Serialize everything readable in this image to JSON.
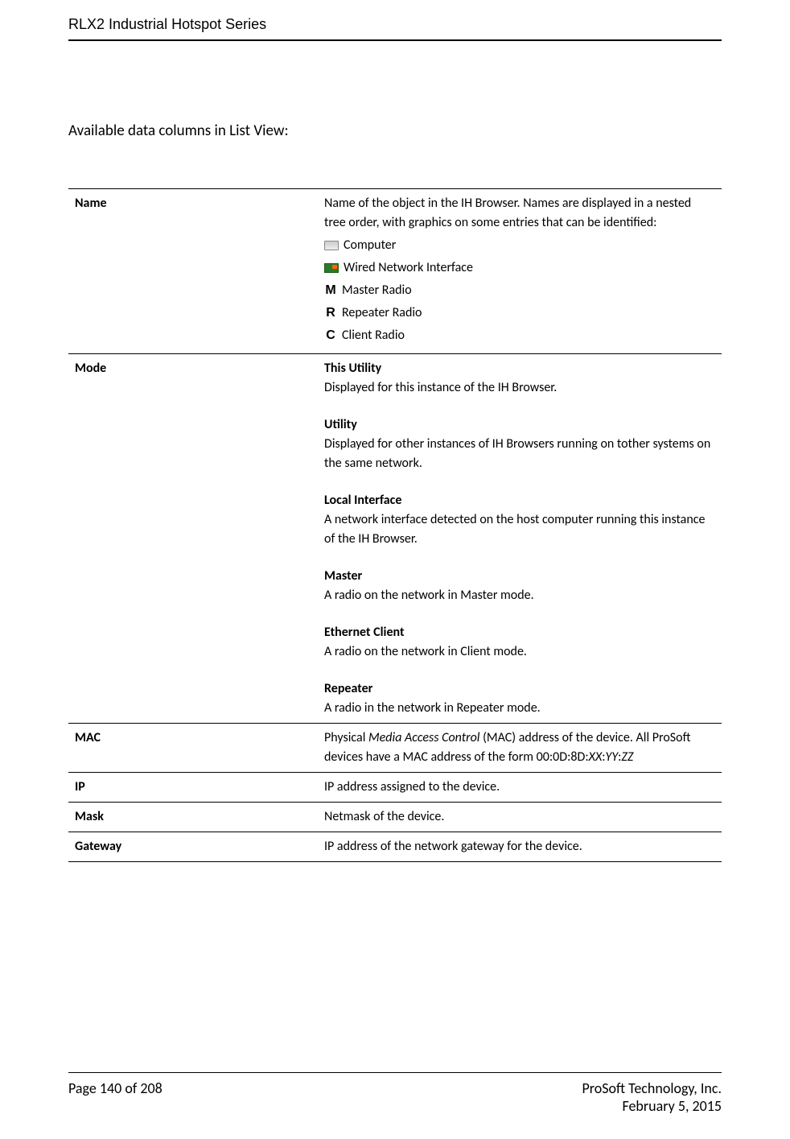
{
  "header": {
    "title": "RLX2 Industrial Hotspot Series"
  },
  "section": {
    "title": "Available data columns in List View:"
  },
  "table": {
    "name": {
      "label": "Name",
      "description": "Name of the object in the IH Browser. Names are displayed in a nested tree order, with graphics on some entries that can be identified:",
      "icons": {
        "computer": "Computer",
        "wired": "Wired Network Interface",
        "master_letter": "M",
        "master": "Master Radio",
        "repeater_letter": "R",
        "repeater": "Repeater Radio",
        "client_letter": "C",
        "client": "Client Radio"
      }
    },
    "mode": {
      "label": "Mode",
      "this_utility": {
        "heading": "This Utility",
        "desc": "Displayed for this instance of the IH Browser."
      },
      "utility": {
        "heading": "Utility",
        "desc": "Displayed for other instances of IH Browsers running on tother systems on the same network."
      },
      "local_interface": {
        "heading": "Local Interface",
        "desc": "A network interface detected on the host computer running this instance of the IH Browser."
      },
      "master": {
        "heading": "Master",
        "desc": "A radio on the network in Master mode."
      },
      "ethernet_client": {
        "heading": "Ethernet Client",
        "desc": "A  radio on the network in Client mode."
      },
      "repeater": {
        "heading": "Repeater",
        "desc": "A radio in the network in Repeater mode."
      }
    },
    "mac": {
      "label": "MAC",
      "desc_pre": "Physical ",
      "desc_italic": "Media Access Control",
      "desc_post": " (MAC) address of the device. All ProSoft devices have a MAC address of the form 00:0D:8D:",
      "xx": "XX",
      "sep1": ":",
      "yy": "YY",
      "sep2": ":",
      "zz": "ZZ"
    },
    "ip": {
      "label": "IP",
      "desc": "IP address assigned to the device."
    },
    "mask": {
      "label": "Mask",
      "desc": "Netmask of the device."
    },
    "gateway": {
      "label": "Gateway",
      "desc": "IP address of the network gateway for the device."
    }
  },
  "footer": {
    "page": "Page 140 of 208",
    "company": "ProSoft Technology, Inc.",
    "date": "February 5, 2015"
  }
}
